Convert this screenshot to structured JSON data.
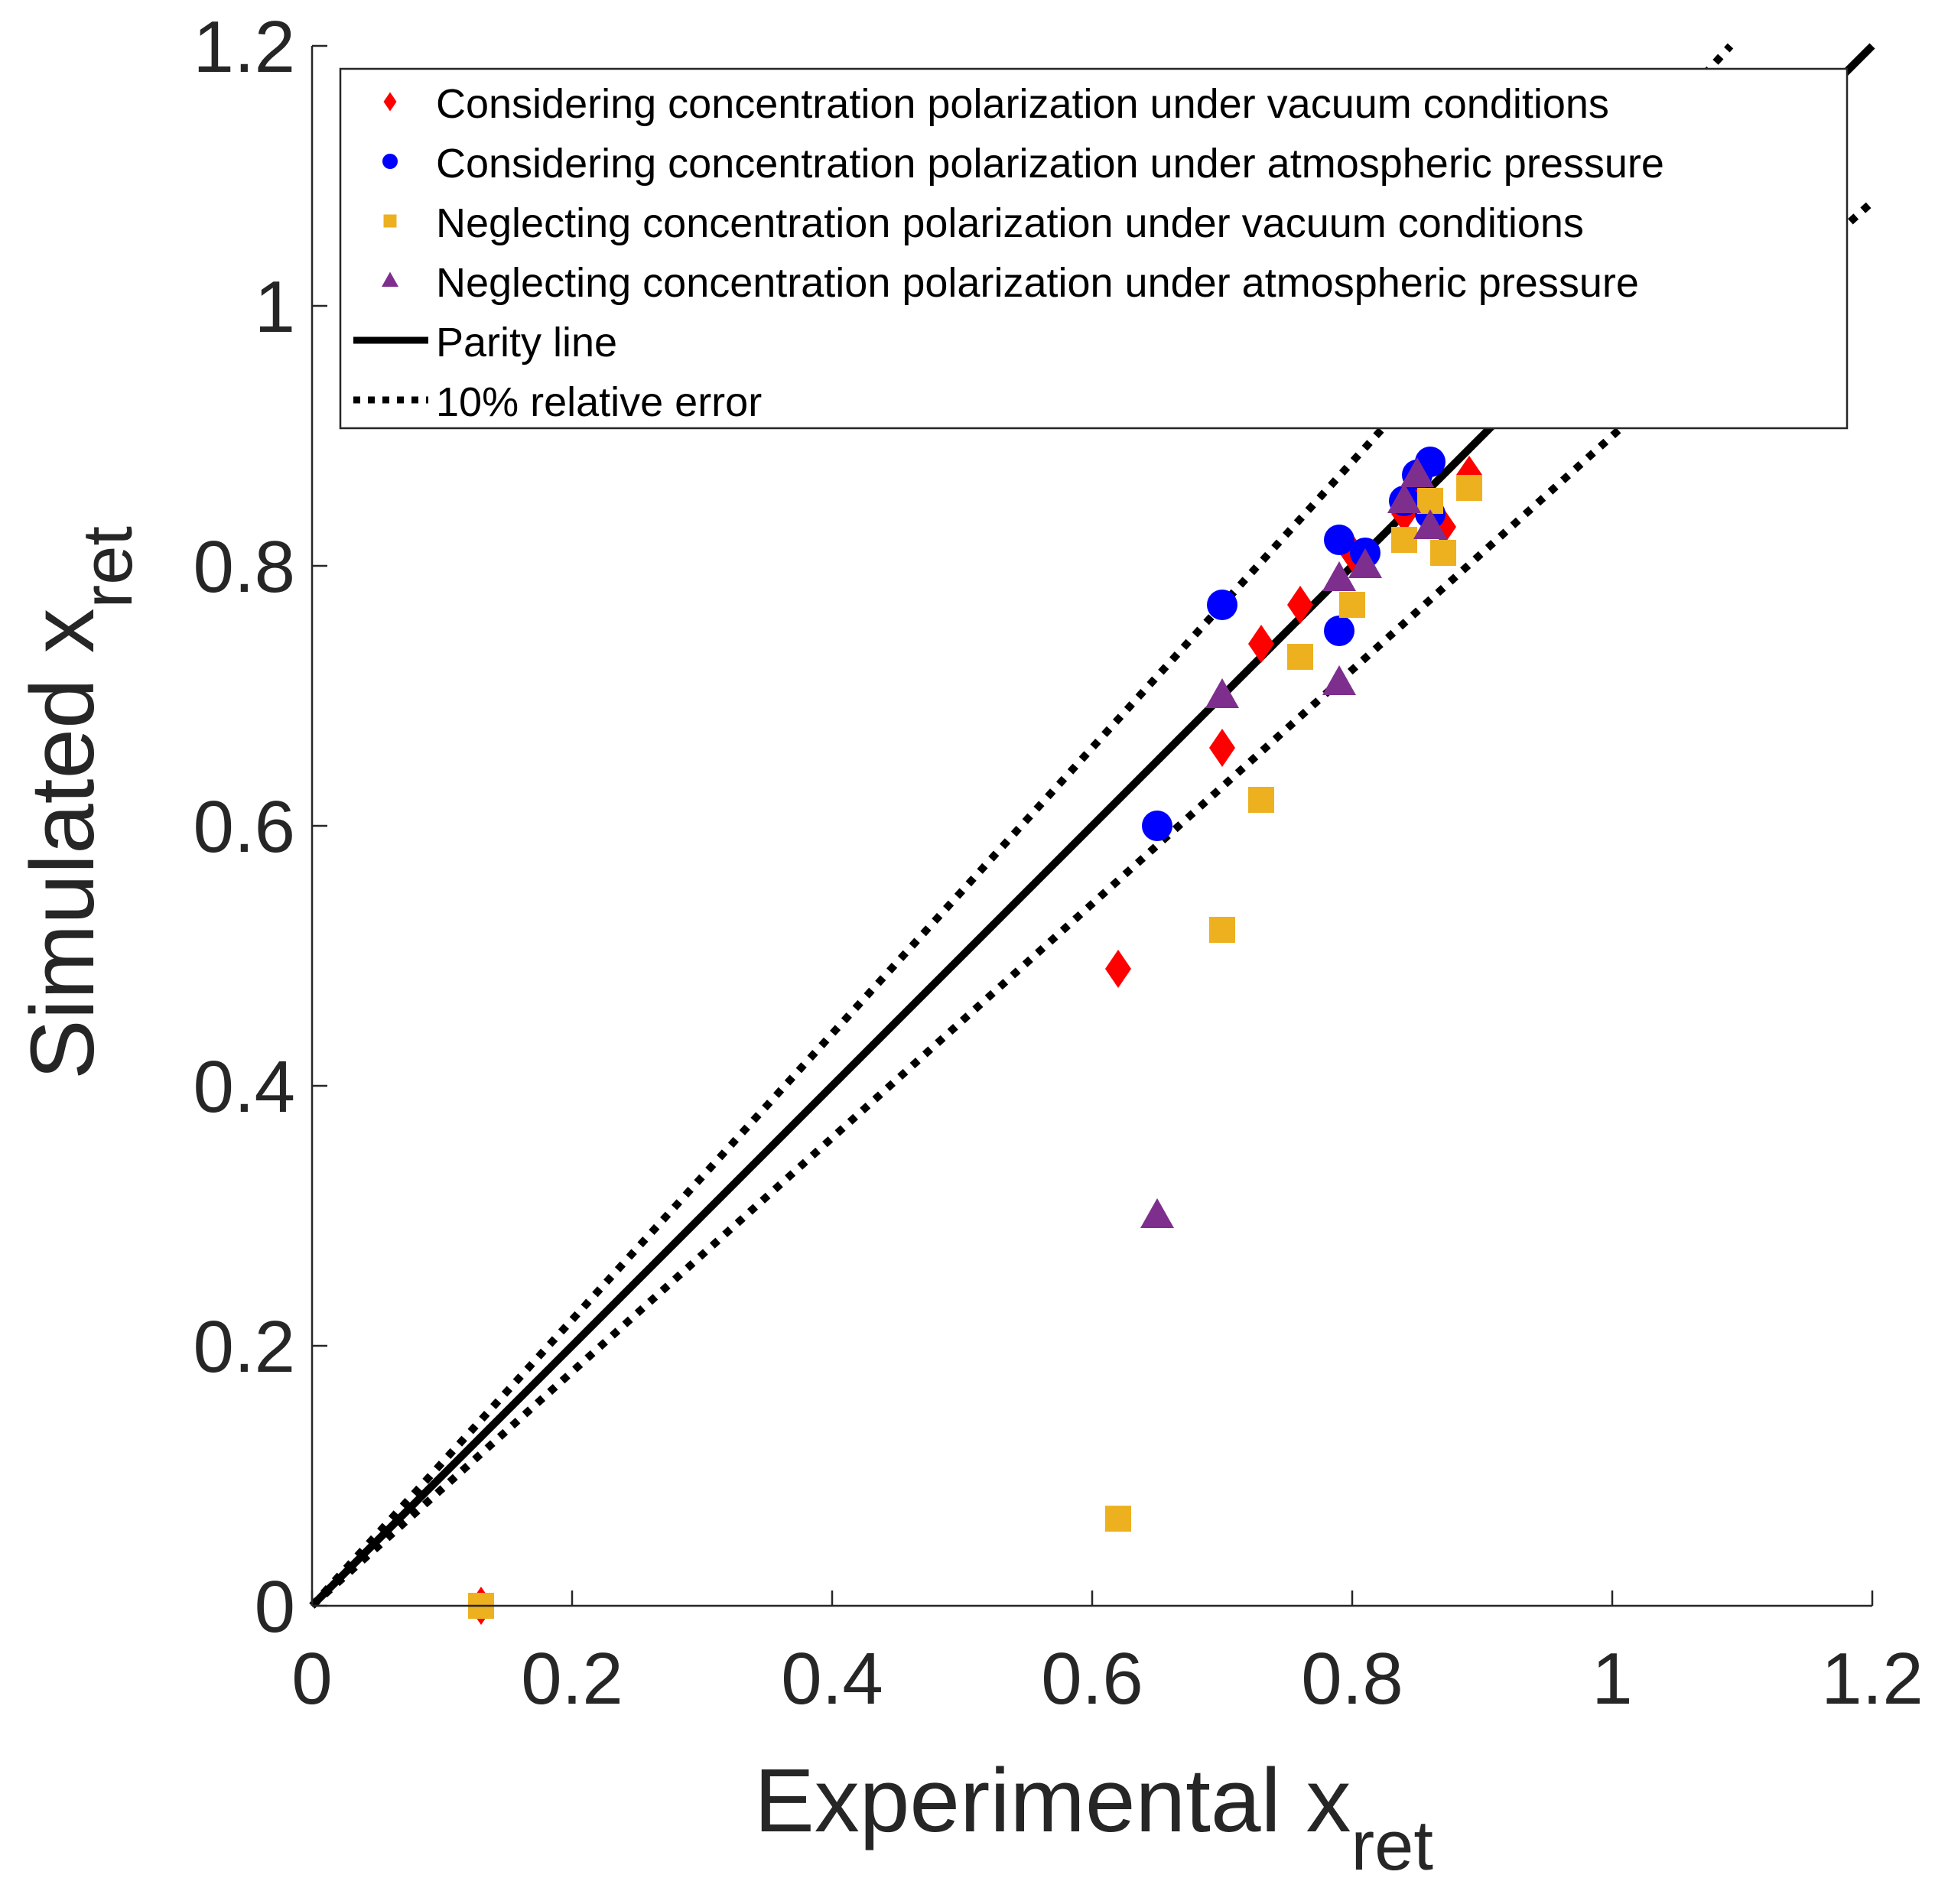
{
  "chart_data": {
    "type": "scatter",
    "title": "",
    "xlabel": "Experimental x",
    "xlabel_sub": "ret",
    "ylabel": "Simulated x",
    "ylabel_sub": "ret",
    "xlim": [
      0,
      1.2
    ],
    "ylim": [
      0,
      1.2
    ],
    "xticks": [
      0,
      0.2,
      0.4,
      0.6,
      0.8,
      1,
      1.2
    ],
    "yticks": [
      0,
      0.2,
      0.4,
      0.6,
      0.8,
      1,
      1.2
    ],
    "xtick_labels": [
      "0",
      "0.2",
      "0.4",
      "0.6",
      "0.8",
      "1",
      "1.2"
    ],
    "ytick_labels": [
      "0",
      "0.2",
      "0.4",
      "0.6",
      "0.8",
      "1",
      "1.2"
    ],
    "grid": false,
    "legend_position": "top-right",
    "series": [
      {
        "name": "Considering concentration polarization under vacuum conditions",
        "marker": "diamond",
        "color": "#ff0000",
        "points": [
          [
            0.13,
            0.0
          ],
          [
            0.62,
            0.49
          ],
          [
            0.7,
            0.66
          ],
          [
            0.73,
            0.74
          ],
          [
            0.76,
            0.77
          ],
          [
            0.8,
            0.81
          ],
          [
            0.84,
            0.84
          ],
          [
            0.85,
            0.85
          ],
          [
            0.87,
            0.83
          ],
          [
            0.89,
            0.87
          ]
        ]
      },
      {
        "name": "Considering concentration polarization under atmospheric pressure",
        "marker": "circle",
        "color": "#0000ff",
        "points": [
          [
            0.65,
            0.6
          ],
          [
            0.7,
            0.77
          ],
          [
            0.79,
            0.75
          ],
          [
            0.79,
            0.82
          ],
          [
            0.81,
            0.81
          ],
          [
            0.84,
            0.85
          ],
          [
            0.85,
            0.87
          ],
          [
            0.86,
            0.88
          ],
          [
            0.86,
            0.84
          ]
        ]
      },
      {
        "name": "Neglecting concentration polarization under vacuum conditions",
        "marker": "square",
        "color": "#edb120",
        "points": [
          [
            0.13,
            0.0
          ],
          [
            0.62,
            0.067
          ],
          [
            0.7,
            0.52
          ],
          [
            0.73,
            0.62
          ],
          [
            0.76,
            0.73
          ],
          [
            0.8,
            0.77
          ],
          [
            0.84,
            0.82
          ],
          [
            0.86,
            0.85
          ],
          [
            0.87,
            0.81
          ],
          [
            0.89,
            0.86
          ]
        ]
      },
      {
        "name": "Neglecting concentration polarization under atmospheric pressure",
        "marker": "triangle",
        "color": "#7e2f8e",
        "points": [
          [
            0.65,
            0.3
          ],
          [
            0.7,
            0.7
          ],
          [
            0.79,
            0.71
          ],
          [
            0.79,
            0.79
          ],
          [
            0.81,
            0.8
          ],
          [
            0.84,
            0.85
          ],
          [
            0.85,
            0.87
          ],
          [
            0.86,
            0.83
          ]
        ]
      }
    ],
    "lines": [
      {
        "name": "Parity line",
        "style": "solid",
        "slope": 1.0,
        "color": "#000000"
      },
      {
        "name": "10% relative error",
        "style": "dotted",
        "slopes": [
          1.1,
          0.9
        ],
        "color": "#000000"
      }
    ]
  }
}
